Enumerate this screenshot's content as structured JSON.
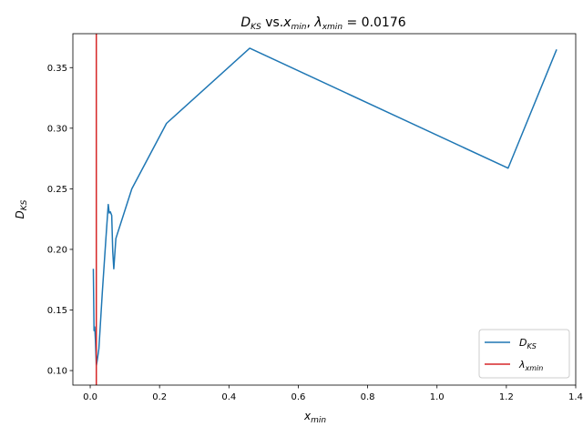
{
  "chart_data": {
    "type": "line",
    "title": "D_KS vs.x_min, λ_xmin = 0.0176",
    "title_parts": {
      "d": "D",
      "ks": "KS",
      "vs": " vs.",
      "x": "x",
      "min": "min",
      "comma": ", ",
      "lambda": "λ",
      "xmin": "xmin",
      "eq": " = 0.0176"
    },
    "xlabel": "x_min",
    "xlabel_parts": {
      "base": "x",
      "sub": "min"
    },
    "ylabel": "D_KS",
    "ylabel_parts": {
      "base": "D",
      "sub": "KS"
    },
    "xlim": [
      -0.05,
      1.4
    ],
    "ylim": [
      0.088,
      0.378
    ],
    "xticks": [
      0.0,
      0.2,
      0.4,
      0.6,
      0.8,
      1.0,
      1.2,
      1.4
    ],
    "xtick_labels": [
      "0.0",
      "0.2",
      "0.4",
      "0.6",
      "0.8",
      "1.0",
      "1.2",
      "1.4"
    ],
    "yticks": [
      0.1,
      0.15,
      0.2,
      0.25,
      0.3,
      0.35
    ],
    "ytick_labels": [
      "0.10",
      "0.15",
      "0.20",
      "0.25",
      "0.30",
      "0.35"
    ],
    "grid": false,
    "legend_placement": "lower-right",
    "series": [
      {
        "name": "D_KS",
        "label_parts": {
          "base": "D",
          "sub": "KS"
        },
        "color": "#1f77b4",
        "x": [
          0.009,
          0.011,
          0.013,
          0.015,
          0.0176,
          0.02,
          0.025,
          0.035,
          0.045,
          0.052,
          0.055,
          0.058,
          0.062,
          0.065,
          0.068,
          0.074,
          0.12,
          0.22,
          0.46,
          1.205,
          1.345
        ],
        "y": [
          0.184,
          0.133,
          0.136,
          0.125,
          0.104,
          0.108,
          0.118,
          0.165,
          0.208,
          0.237,
          0.23,
          0.231,
          0.228,
          0.198,
          0.184,
          0.209,
          0.25,
          0.304,
          0.366,
          0.267,
          0.365
        ]
      }
    ],
    "vline": {
      "name": "λ_xmin",
      "label_parts": {
        "base": "λ",
        "sub": "xmin"
      },
      "x": 0.0176,
      "color": "#d62728"
    }
  }
}
